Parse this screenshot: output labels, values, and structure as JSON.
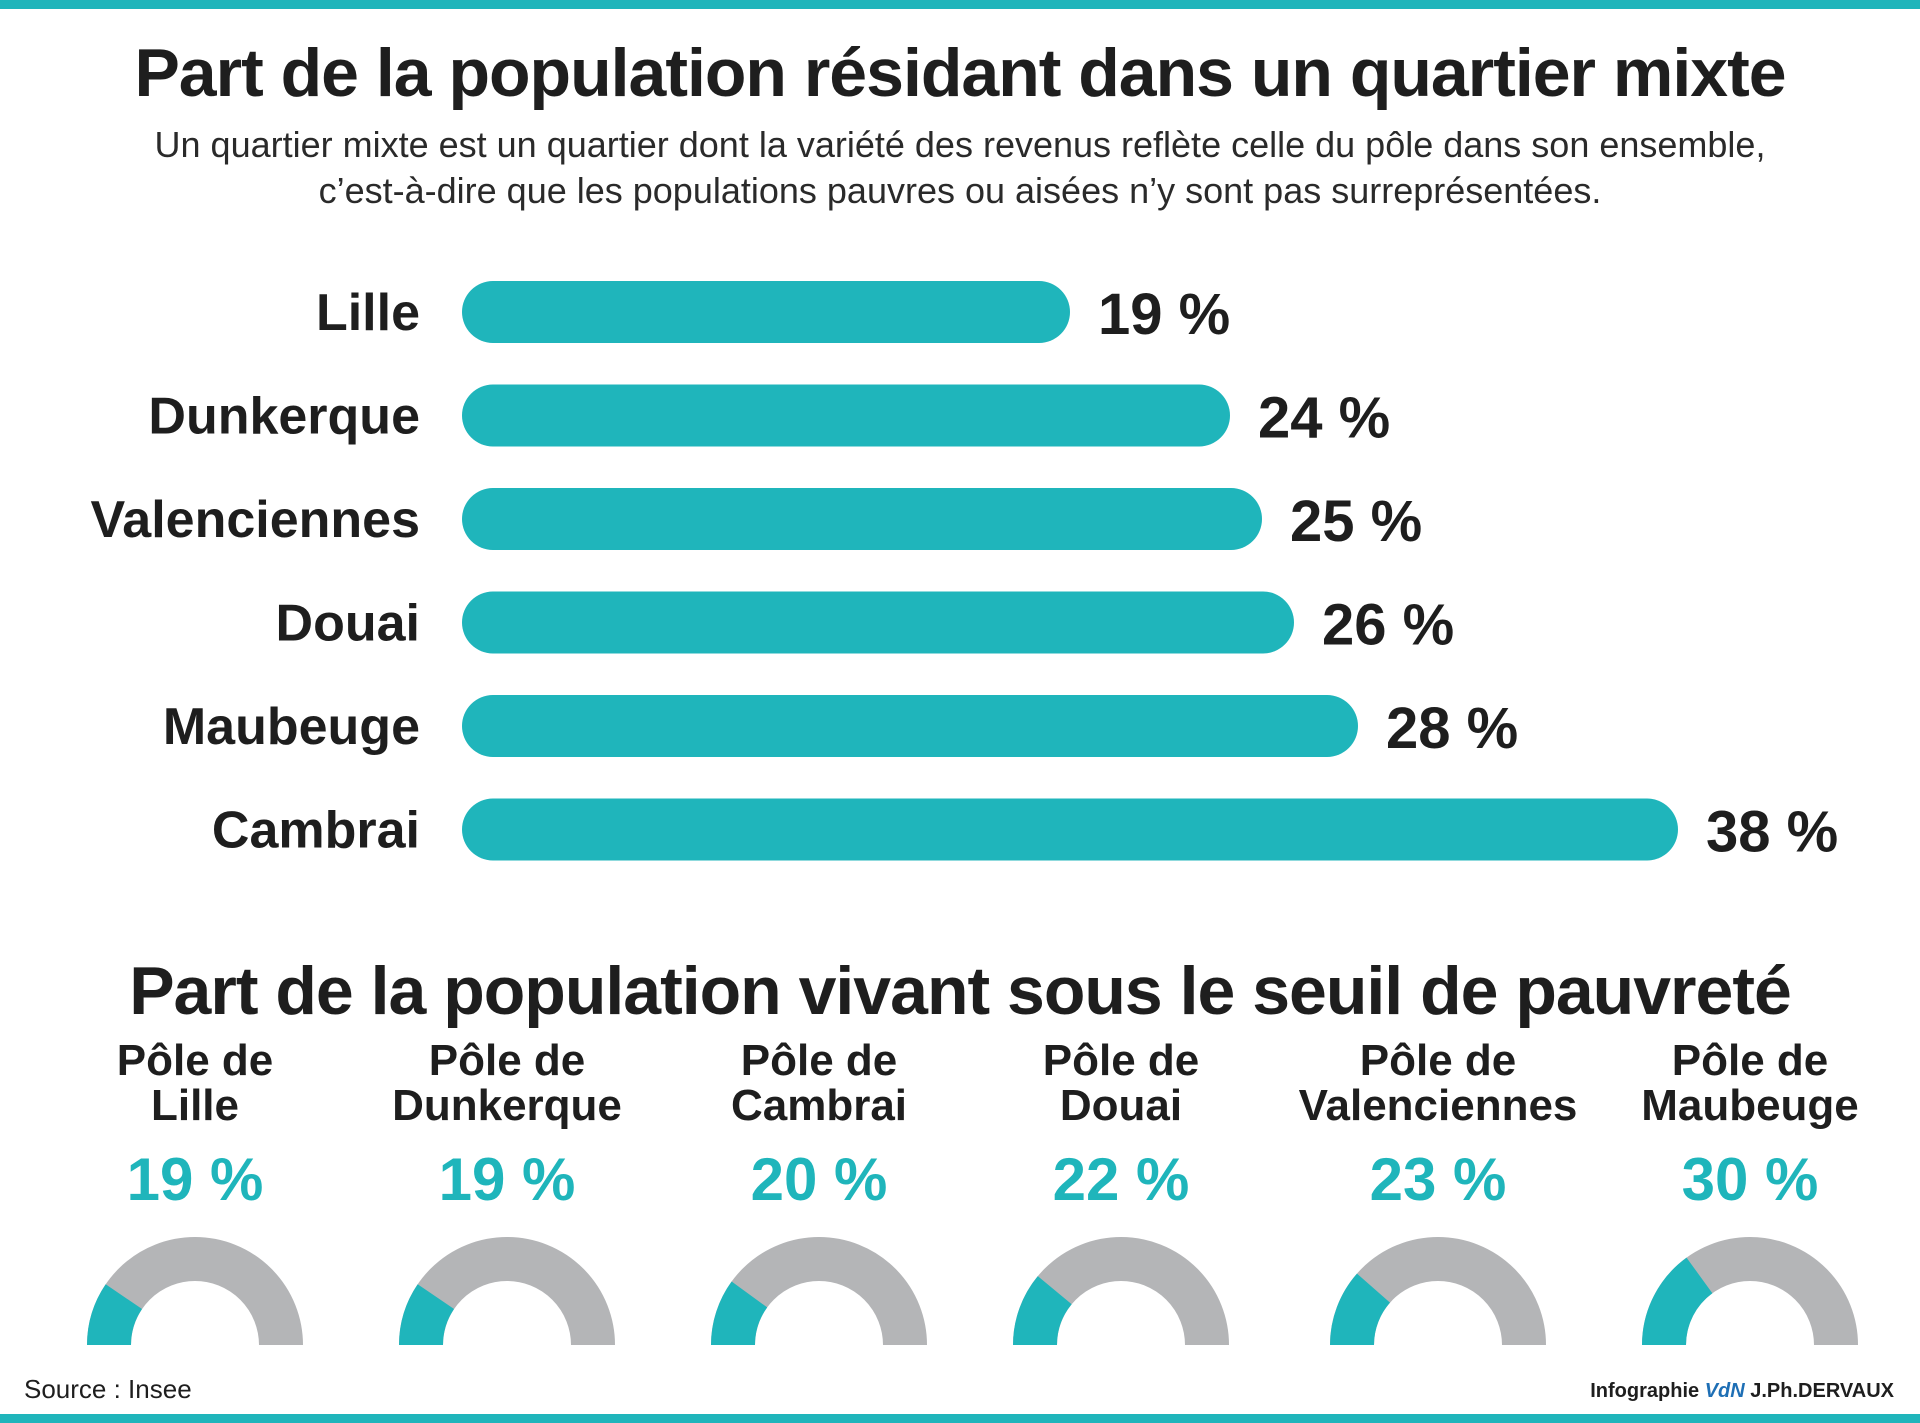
{
  "colors": {
    "accent": "#1fb5bb",
    "track": "#b4b5b7",
    "text": "#1e1e1e"
  },
  "header": {
    "title": "Part de la population résidant dans un quartier mixte",
    "subtitle_line1": "Un quartier mixte est un quartier dont la variété des revenus reflète celle du pôle dans son ensemble,",
    "subtitle_line2": "c’est-à-dire que les populations pauvres ou aisées n’y sont pas surreprésentées."
  },
  "section2": {
    "title": "Part de la population vivant sous le seuil de pauvreté"
  },
  "footer": {
    "source": "Source : Insee",
    "credit_prefix": "Infographie",
    "credit_logo": "VdN",
    "credit_author": "J.Ph.DERVAUX"
  },
  "chart_data": [
    {
      "type": "bar",
      "orientation": "horizontal",
      "title": "Part de la population résidant dans un quartier mixte",
      "categories": [
        "Lille",
        "Dunkerque",
        "Valenciennes",
        "Douai",
        "Maubeuge",
        "Cambrai"
      ],
      "values": [
        19,
        24,
        25,
        26,
        28,
        38
      ],
      "value_labels": [
        "19 %",
        "24 %",
        "25 %",
        "26 %",
        "28 %",
        "38 %"
      ],
      "unit": "%",
      "grid": false
    },
    {
      "type": "pie",
      "style": "half-donut gauges",
      "title": "Part de la population vivant sous le seuil de pauvreté",
      "categories": [
        [
          "Pôle de",
          "Lille"
        ],
        [
          "Pôle de",
          "Dunkerque"
        ],
        [
          "Pôle de",
          "Cambrai"
        ],
        [
          "Pôle de",
          "Douai"
        ],
        [
          "Pôle de",
          "Valenciennes"
        ],
        [
          "Pôle de",
          "Maubeuge"
        ]
      ],
      "values": [
        19,
        19,
        20,
        22,
        23,
        30
      ],
      "value_labels": [
        "19 %",
        "19 %",
        "20 %",
        "22 %",
        "23 %",
        "30 %"
      ],
      "unit": "%"
    }
  ]
}
